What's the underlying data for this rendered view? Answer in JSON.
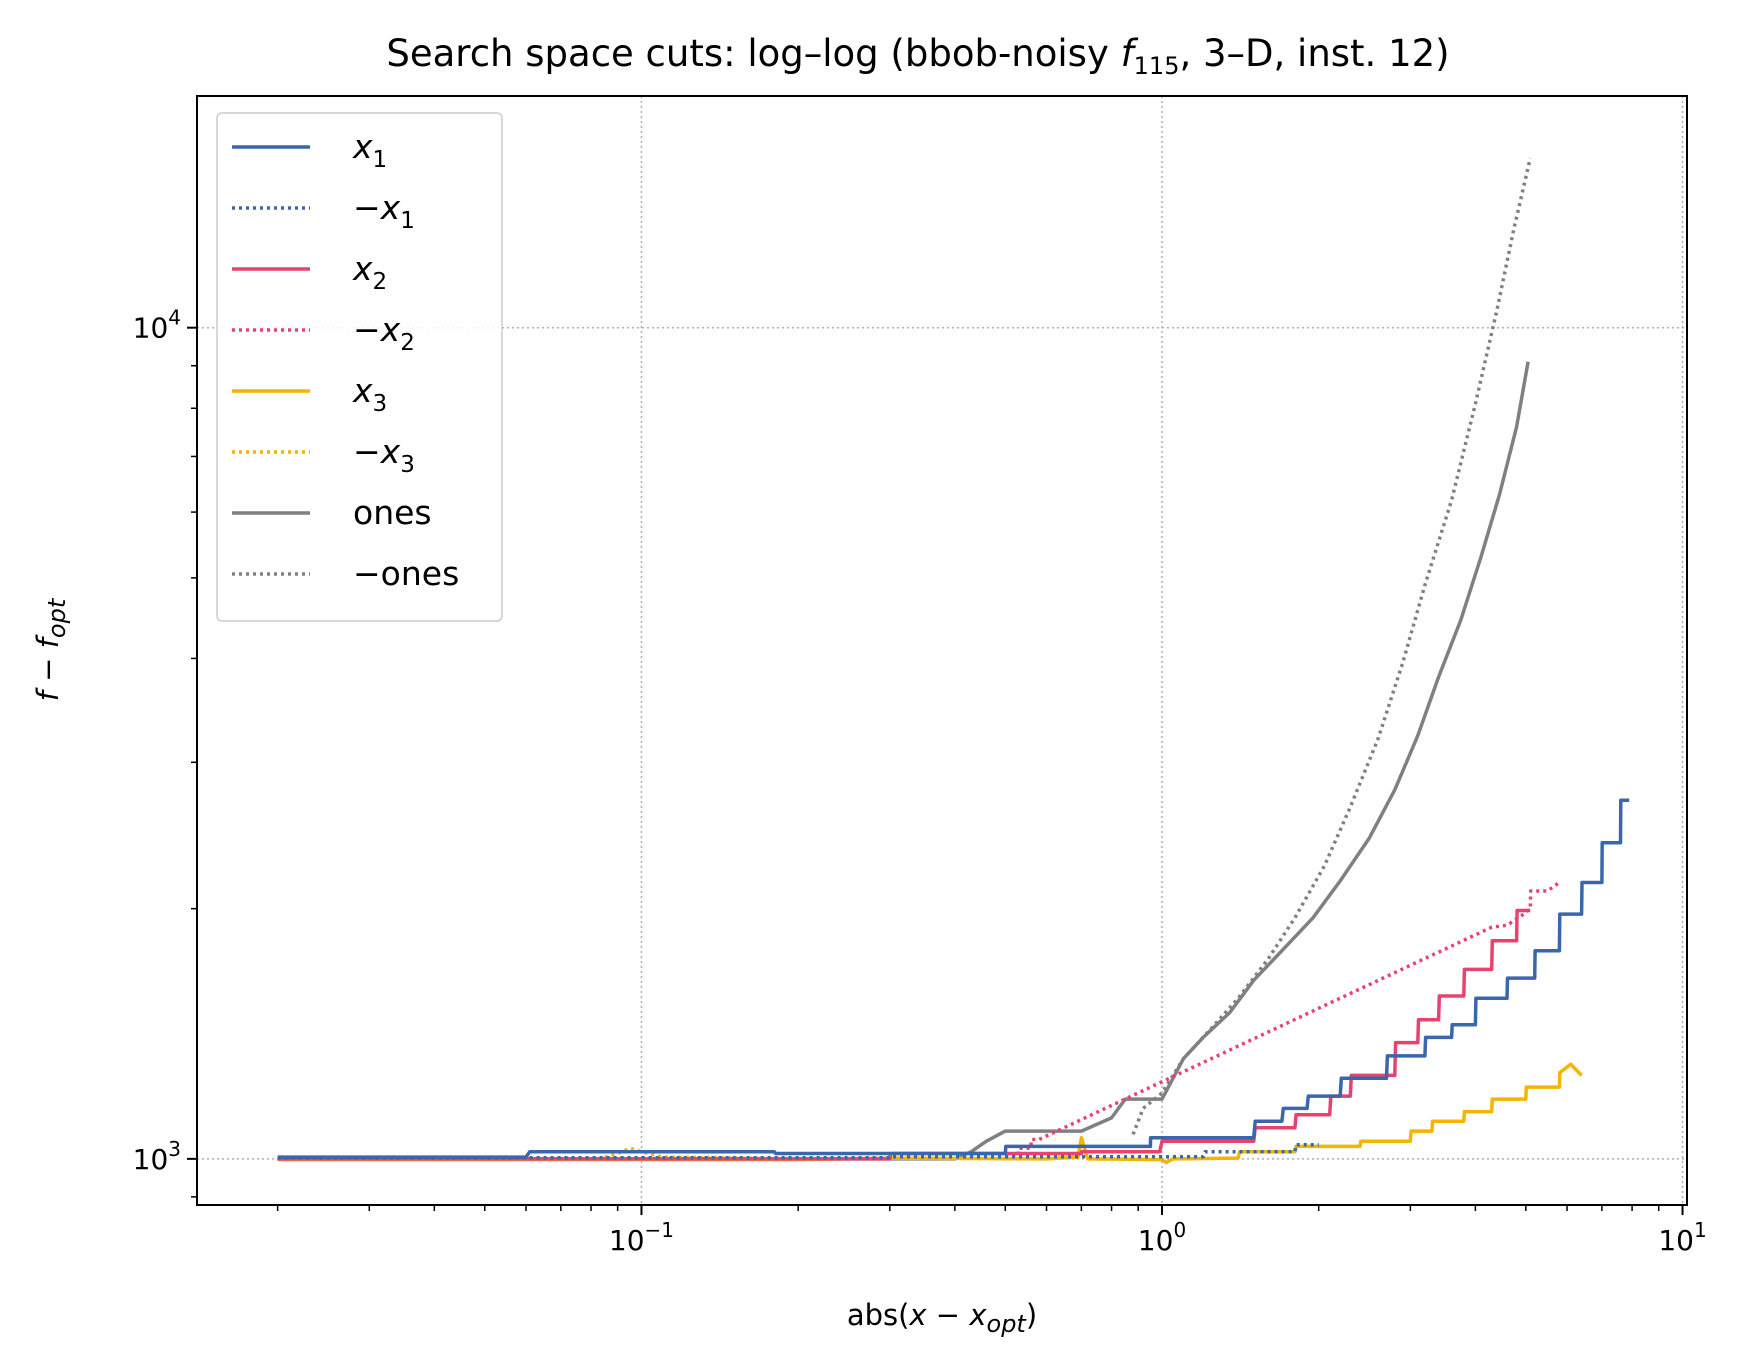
{
  "chart_data": {
    "type": "line",
    "title": {
      "pre": "Search space cuts: log–log (bbob-noisy ",
      "f": "f",
      "fsub": "115",
      "post": ", 3–D, inst. 12)"
    },
    "xlabel": {
      "pre": "abs(",
      "x": "x",
      "mid": " − ",
      "x2": "x",
      "sub": "opt",
      "post": ")"
    },
    "ylabel": {
      "f": "f",
      "mid": " − ",
      "f2": "f",
      "sub": "opt"
    },
    "xscale": "log",
    "yscale": "log",
    "xlim": [
      0.014,
      10.2
    ],
    "ylim": [
      880,
      19000
    ],
    "grid": true,
    "legend_position": "upper left",
    "xticks": [
      {
        "value": 0.1,
        "base": "10",
        "exp": "−1"
      },
      {
        "value": 1,
        "base": "10",
        "exp": "0"
      },
      {
        "value": 10,
        "base": "10",
        "exp": "1"
      }
    ],
    "yticks": [
      {
        "value": 1000,
        "base": "10",
        "exp": "3"
      },
      {
        "value": 10000,
        "base": "10",
        "exp": "4"
      }
    ],
    "series": [
      {
        "name": "x₁",
        "legend": {
          "neg": "",
          "var": "x",
          "sub": "1"
        },
        "color": "#3a67ac",
        "dash": "solid",
        "points": [
          [
            0.02,
            1005
          ],
          [
            0.06,
            1005
          ],
          [
            0.061,
            1020
          ],
          [
            0.18,
            1020
          ],
          [
            0.181,
            1015
          ],
          [
            0.5,
            1015
          ],
          [
            0.501,
            1035
          ],
          [
            0.95,
            1035
          ],
          [
            0.951,
            1060
          ],
          [
            1.5,
            1060
          ],
          [
            1.51,
            1110
          ],
          [
            1.7,
            1110
          ],
          [
            1.71,
            1150
          ],
          [
            1.9,
            1150
          ],
          [
            1.91,
            1190
          ],
          [
            2.2,
            1190
          ],
          [
            2.21,
            1250
          ],
          [
            2.7,
            1250
          ],
          [
            2.71,
            1330
          ],
          [
            3.2,
            1330
          ],
          [
            3.21,
            1400
          ],
          [
            3.6,
            1400
          ],
          [
            3.61,
            1450
          ],
          [
            4.0,
            1450
          ],
          [
            4.01,
            1560
          ],
          [
            4.6,
            1560
          ],
          [
            4.61,
            1650
          ],
          [
            5.2,
            1650
          ],
          [
            5.21,
            1780
          ],
          [
            5.8,
            1780
          ],
          [
            5.81,
            1970
          ],
          [
            6.4,
            1970
          ],
          [
            6.41,
            2150
          ],
          [
            7.0,
            2150
          ],
          [
            7.01,
            2400
          ],
          [
            7.6,
            2400
          ],
          [
            7.61,
            2700
          ],
          [
            7.9,
            2700
          ]
        ]
      },
      {
        "name": "−x₁",
        "legend": {
          "neg": "−",
          "var": "x",
          "sub": "1"
        },
        "color": "#3a67ac",
        "dash": "dotted",
        "points": [
          [
            0.02,
            1003
          ],
          [
            0.3,
            1003
          ],
          [
            0.301,
            1006
          ],
          [
            1.2,
            1006
          ],
          [
            1.21,
            1020
          ],
          [
            1.8,
            1020
          ],
          [
            1.81,
            1040
          ],
          [
            2.0,
            1040
          ]
        ]
      },
      {
        "name": "x₂",
        "legend": {
          "neg": "",
          "var": "x",
          "sub": "2"
        },
        "color": "#e8436f",
        "dash": "solid",
        "points": [
          [
            0.02,
            1000
          ],
          [
            0.3,
            1000
          ],
          [
            0.301,
            1015
          ],
          [
            0.7,
            1015
          ],
          [
            0.701,
            1020
          ],
          [
            0.99,
            1020
          ],
          [
            1.0,
            1050
          ],
          [
            1.5,
            1050
          ],
          [
            1.51,
            1090
          ],
          [
            1.8,
            1090
          ],
          [
            1.81,
            1130
          ],
          [
            2.1,
            1130
          ],
          [
            2.11,
            1190
          ],
          [
            2.3,
            1190
          ],
          [
            2.31,
            1260
          ],
          [
            2.8,
            1260
          ],
          [
            2.81,
            1380
          ],
          [
            3.1,
            1380
          ],
          [
            3.11,
            1470
          ],
          [
            3.4,
            1470
          ],
          [
            3.41,
            1570
          ],
          [
            3.8,
            1570
          ],
          [
            3.81,
            1690
          ],
          [
            4.3,
            1690
          ],
          [
            4.31,
            1830
          ],
          [
            4.8,
            1830
          ],
          [
            4.81,
            1990
          ],
          [
            5.1,
            1990
          ]
        ]
      },
      {
        "name": "−x₂",
        "legend": {
          "neg": "−",
          "var": "x",
          "sub": "2"
        },
        "color": "#e8436f",
        "dash": "dotted",
        "points": [
          [
            0.5,
            1010
          ],
          [
            0.53,
            1010
          ],
          [
            0.531,
            1030
          ],
          [
            0.56,
            1030
          ],
          [
            0.561,
            1055
          ],
          [
            0.58,
            1055
          ],
          [
            4.3,
            1900
          ],
          [
            4.6,
            1910
          ],
          [
            4.9,
            1960
          ],
          [
            5.1,
            2000
          ],
          [
            5.11,
            2100
          ],
          [
            5.5,
            2100
          ],
          [
            5.8,
            2150
          ]
        ]
      },
      {
        "name": "x₃",
        "legend": {
          "neg": "",
          "var": "x",
          "sub": "3"
        },
        "color": "#f4b400",
        "dash": "solid",
        "points": [
          [
            0.02,
            998
          ],
          [
            0.2,
            998
          ],
          [
            0.3,
            1002
          ],
          [
            0.6,
            1000
          ],
          [
            0.69,
            1005
          ],
          [
            0.7,
            1060
          ],
          [
            0.72,
            1000
          ],
          [
            1.0,
            998
          ],
          [
            1.02,
            990
          ],
          [
            1.05,
            1000
          ],
          [
            1.4,
            1002
          ],
          [
            1.41,
            1020
          ],
          [
            1.8,
            1020
          ],
          [
            1.81,
            1035
          ],
          [
            2.4,
            1035
          ],
          [
            2.41,
            1050
          ],
          [
            3.0,
            1050
          ],
          [
            3.01,
            1080
          ],
          [
            3.3,
            1080
          ],
          [
            3.31,
            1110
          ],
          [
            3.8,
            1110
          ],
          [
            3.81,
            1140
          ],
          [
            4.3,
            1140
          ],
          [
            4.31,
            1180
          ],
          [
            5.0,
            1180
          ],
          [
            5.01,
            1220
          ],
          [
            5.8,
            1220
          ],
          [
            5.81,
            1270
          ],
          [
            6.1,
            1300
          ],
          [
            6.4,
            1260
          ]
        ]
      },
      {
        "name": "−x₃",
        "legend": {
          "neg": "−",
          "var": "x",
          "sub": "3"
        },
        "color": "#f4b400",
        "dash": "dotted",
        "points": [
          [
            0.085,
            1005
          ],
          [
            0.09,
            1015
          ],
          [
            0.095,
            1030
          ],
          [
            0.1,
            1020
          ],
          [
            0.11,
            1005
          ],
          [
            0.2,
            1000
          ]
        ]
      },
      {
        "name": "ones",
        "legend": {
          "neg": "",
          "var": "ones",
          "sub": ""
        },
        "color": "#808080",
        "dash": "solid",
        "points": [
          [
            0.02,
            1000
          ],
          [
            0.4,
            1000
          ],
          [
            0.43,
            1020
          ],
          [
            0.46,
            1050
          ],
          [
            0.5,
            1080
          ],
          [
            0.7,
            1080
          ],
          [
            0.8,
            1120
          ],
          [
            0.85,
            1180
          ],
          [
            1.0,
            1180
          ],
          [
            1.05,
            1250
          ],
          [
            1.1,
            1320
          ],
          [
            1.2,
            1400
          ],
          [
            1.35,
            1500
          ],
          [
            1.5,
            1640
          ],
          [
            1.7,
            1780
          ],
          [
            1.95,
            1950
          ],
          [
            2.2,
            2160
          ],
          [
            2.5,
            2430
          ],
          [
            2.8,
            2780
          ],
          [
            3.1,
            3230
          ],
          [
            3.4,
            3800
          ],
          [
            3.75,
            4450
          ],
          [
            4.1,
            5300
          ],
          [
            4.45,
            6300
          ],
          [
            4.8,
            7600
          ],
          [
            5.05,
            9100
          ]
        ]
      },
      {
        "name": "−ones",
        "legend": {
          "neg": "−",
          "var": "ones",
          "sub": ""
        },
        "color": "#808080",
        "dash": "dotted",
        "points": [
          [
            0.88,
            1070
          ],
          [
            0.92,
            1150
          ],
          [
            1.0,
            1200
          ],
          [
            1.1,
            1320
          ],
          [
            1.25,
            1440
          ],
          [
            1.4,
            1560
          ],
          [
            1.6,
            1740
          ],
          [
            1.8,
            1950
          ],
          [
            2.05,
            2250
          ],
          [
            2.3,
            2650
          ],
          [
            2.6,
            3200
          ],
          [
            2.9,
            3950
          ],
          [
            3.2,
            4900
          ],
          [
            3.6,
            6200
          ],
          [
            4.0,
            8100
          ],
          [
            4.4,
            10500
          ],
          [
            4.75,
            13200
          ],
          [
            5.1,
            16000
          ]
        ]
      }
    ]
  }
}
